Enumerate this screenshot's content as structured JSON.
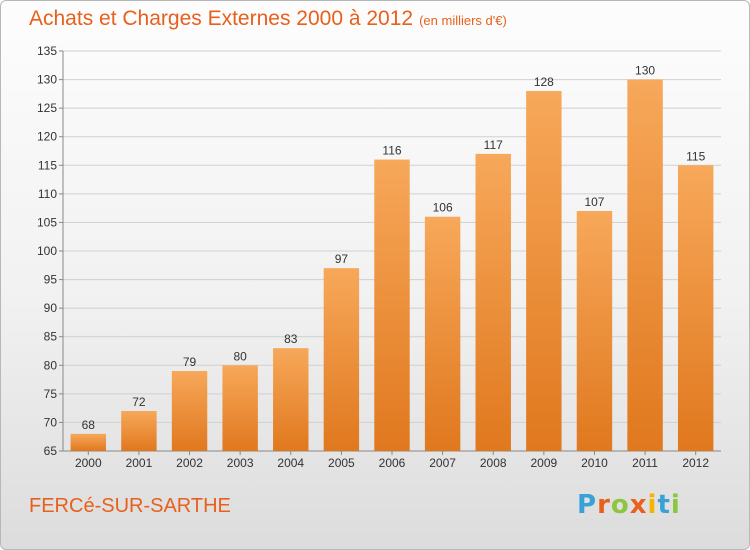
{
  "header": {
    "title": "Achats et Charges Externes 2000 à 2012",
    "unit": "(en milliers d'€)"
  },
  "footer": {
    "city": "FERCé-SUR-SARTHE",
    "brand": {
      "letters": [
        "P",
        "r",
        "o",
        "x",
        "i",
        "t",
        "i"
      ],
      "colors": [
        "#3aa0d8",
        "#e8601c",
        "#8cc63f",
        "#e8601c",
        "#f4b400",
        "#3aa0d8",
        "#8cc63f"
      ]
    }
  },
  "colors": {
    "bar_top": "#f7a85a",
    "bar_bottom": "#e0781e",
    "bar_label": "#333333",
    "grid": "#d0d0d0",
    "title": "#e8601c"
  },
  "chart_data": {
    "type": "bar",
    "title": "Achats et Charges Externes 2000 à 2012",
    "subtitle": "(en milliers d'€)",
    "categories": [
      "2000",
      "2001",
      "2002",
      "2003",
      "2004",
      "2005",
      "2006",
      "2007",
      "2008",
      "2009",
      "2010",
      "2011",
      "2012"
    ],
    "values": [
      68,
      72,
      79,
      80,
      83,
      97,
      116,
      106,
      117,
      128,
      107,
      130,
      115
    ],
    "ylim": [
      65,
      135
    ],
    "yticks": [
      65,
      70,
      75,
      80,
      85,
      90,
      95,
      100,
      105,
      110,
      115,
      120,
      125,
      130,
      135
    ],
    "grid": true,
    "data_labels": true
  }
}
